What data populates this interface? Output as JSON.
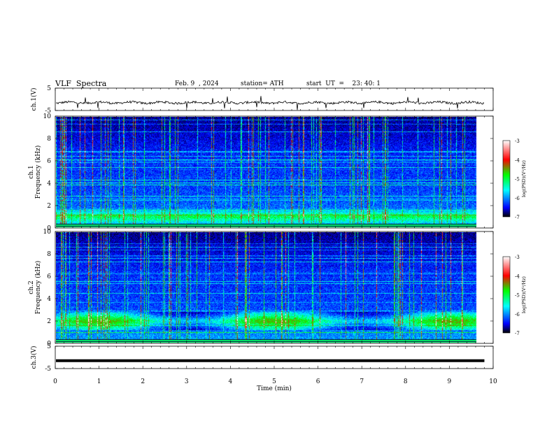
{
  "header": {
    "title": "VLF  Spectra",
    "date": "Feb. 9  , 2024",
    "station": "station= ATH",
    "start_ut": "start  UT  =    23: 40: 1"
  },
  "chart_data": {
    "type": "heatmap",
    "panels": [
      {
        "id": "ch1_voltage",
        "type": "line",
        "ylabel": "ch.1(V)",
        "ylim": [
          -5,
          5
        ],
        "yticks": [
          5,
          -5
        ],
        "baseline_v": -1.5,
        "noise_amplitude_v": 1.0
      },
      {
        "id": "ch1_spectrogram",
        "type": "heatmap",
        "ylabel_line1": "ch.1",
        "ylabel_line2": "Frequency  (kHz)",
        "ylim_khz": [
          0,
          10
        ],
        "yticks": [
          0,
          2,
          4,
          6,
          8,
          10
        ],
        "strong_band_khz": 1.0,
        "colorbar": {
          "label": "log(PSD)(V²/Hz)",
          "range": [
            -7,
            -3
          ],
          "ticks": [
            -3,
            -4,
            -5,
            -6,
            -7
          ]
        }
      },
      {
        "id": "ch2_spectrogram",
        "type": "heatmap",
        "ylabel_line1": "ch.2",
        "ylabel_line2": "Frequency  (kHz)",
        "ylim_khz": [
          0,
          10
        ],
        "yticks": [
          0,
          2,
          4,
          6,
          8,
          10
        ],
        "strong_band_khz": 2.0,
        "colorbar": {
          "label": "log(PSD)(V²/Hz)",
          "range": [
            -7,
            -3
          ],
          "ticks": [
            -3,
            -4,
            -5,
            -6,
            -7
          ]
        }
      },
      {
        "id": "ch3_voltage",
        "type": "line",
        "ylabel": "ch.3(V)",
        "ylim": [
          -5,
          5
        ],
        "yticks": [
          5,
          -5
        ],
        "constant_v": -1.5
      }
    ],
    "xaxis": {
      "label": "Time  (min)",
      "xlim": [
        0,
        10
      ],
      "ticks": [
        0,
        1,
        2,
        3,
        4,
        5,
        6,
        7,
        8,
        9,
        10
      ],
      "data_end_min": 9.8
    },
    "colors": {
      "low": "#000000",
      "mid_low": "#0000ff",
      "mid": "#00ffff",
      "mid_high": "#00ff00",
      "high": "#ff0000"
    }
  }
}
